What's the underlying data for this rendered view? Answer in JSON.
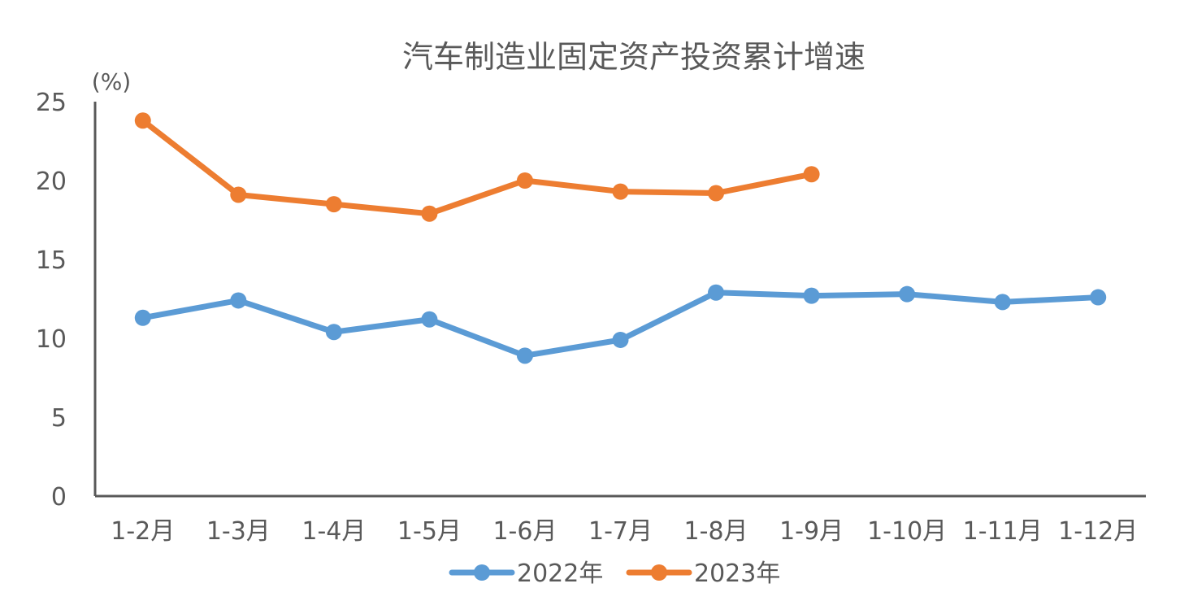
{
  "chart_data": {
    "type": "line",
    "title": "汽车制造业固定资产投资累计增速",
    "y_unit": "(%)",
    "categories": [
      "1-2月",
      "1-3月",
      "1-4月",
      "1-5月",
      "1-6月",
      "1-7月",
      "1-8月",
      "1-9月",
      "1-10月",
      "1-11月",
      "1-12月"
    ],
    "ylim": [
      0,
      25
    ],
    "yticks": [
      0,
      5,
      10,
      15,
      20,
      25
    ],
    "grid": false,
    "legend_position": "bottom",
    "series": [
      {
        "name": "2022年",
        "color": "#5B9BD5",
        "values": [
          11.3,
          12.4,
          10.4,
          11.2,
          8.9,
          9.9,
          12.9,
          12.7,
          12.8,
          12.3,
          12.6
        ]
      },
      {
        "name": "2023年",
        "color": "#ED7D31",
        "values": [
          23.8,
          19.1,
          18.5,
          17.9,
          20.0,
          19.3,
          19.2,
          20.4,
          null,
          null,
          null
        ]
      }
    ]
  }
}
